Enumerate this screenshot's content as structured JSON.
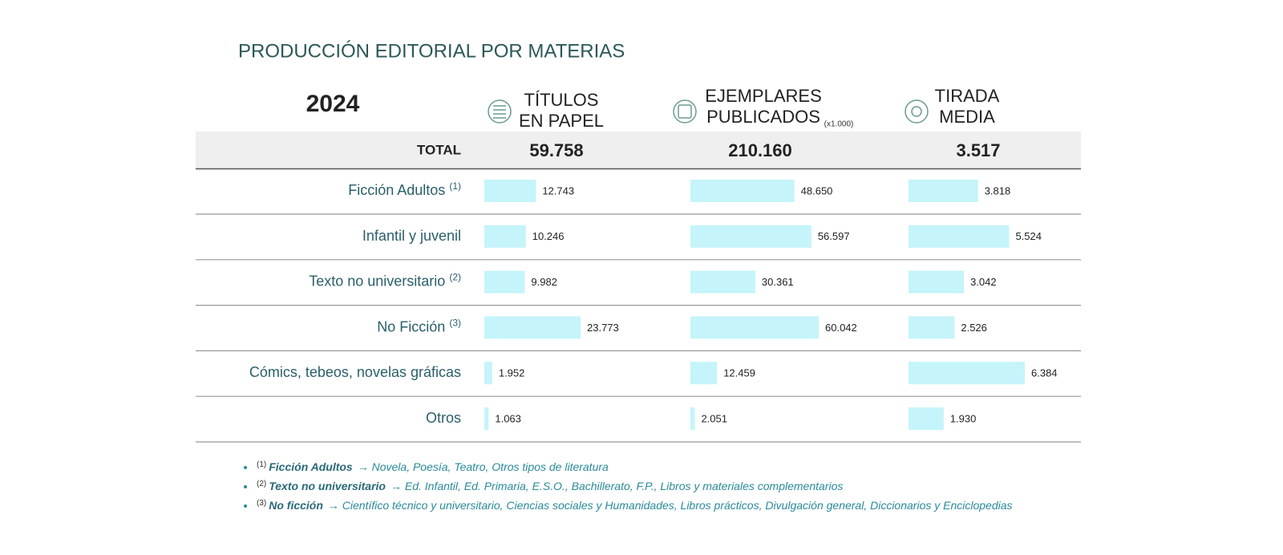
{
  "title": "PRODUCCIÓN EDITORIAL POR MATERIAS",
  "year": "2024",
  "columns": [
    {
      "lines": [
        "TÍTULOS",
        "EN PAPEL"
      ]
    },
    {
      "lines": [
        "EJEMPLARES",
        "PUBLICADOS"
      ],
      "unit": "(x1.000)"
    },
    {
      "lines": [
        "TIRADA",
        "MEDIA"
      ]
    }
  ],
  "total": {
    "label": "TOTAL",
    "values": [
      "59.758",
      "210.160",
      "3.517"
    ]
  },
  "rows": [
    {
      "label": "Ficción Adultos",
      "note": "(1)",
      "values": [
        {
          "value": 12743,
          "label": "12.743"
        },
        {
          "value": 48650,
          "label": "48.650"
        },
        {
          "value": 3818,
          "label": "3.818"
        }
      ]
    },
    {
      "label": "Infantil y juvenil",
      "values": [
        {
          "value": 10246,
          "label": "10.246"
        },
        {
          "value": 56597,
          "label": "56.597"
        },
        {
          "value": 5524,
          "label": "5.524"
        }
      ]
    },
    {
      "label": "Texto no universitario",
      "note": "(2)",
      "values": [
        {
          "value": 9982,
          "label": "9.982"
        },
        {
          "value": 30361,
          "label": "30.361"
        },
        {
          "value": 3042,
          "label": "3.042"
        }
      ]
    },
    {
      "label": "No Ficción",
      "note": "(3)",
      "values": [
        {
          "value": 23773,
          "label": "23.773"
        },
        {
          "value": 60042,
          "label": "60.042"
        },
        {
          "value": 2526,
          "label": "2.526"
        }
      ]
    },
    {
      "label": "Cómics, tebeos, novelas gráficas",
      "values": [
        {
          "value": 1952,
          "label": "1.952"
        },
        {
          "value": 12459,
          "label": "12.459"
        },
        {
          "value": 6384,
          "label": "6.384"
        }
      ]
    },
    {
      "label": "Otros",
      "values": [
        {
          "value": 1063,
          "label": "1.063"
        },
        {
          "value": 2051,
          "label": "2.051"
        },
        {
          "value": 1930,
          "label": "1.930"
        }
      ]
    }
  ],
  "footnotes": [
    {
      "mark": "(1)",
      "term": "Ficción Adultos",
      "text": "→ Novela, Poesía, Teatro, Otros tipos de literatura"
    },
    {
      "mark": "(2)",
      "term": "Texto no universitario",
      "text": "→ Ed. Infantil, Ed. Primaria, E.S.O., Bachillerato, F.P., Libros y materiales complementarios"
    },
    {
      "mark": "(3)",
      "term": "No ficción",
      "text": "→ Científico técnico y universitario, Ciencias sociales y Humanidades, Libros prácticos, Divulgación general, Diccionarios y Enciclopedias"
    }
  ]
}
